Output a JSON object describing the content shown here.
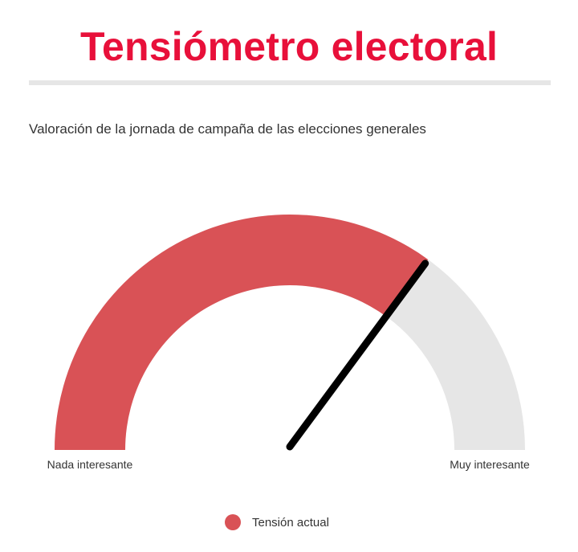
{
  "header": {
    "title": "Tensiómetro electoral"
  },
  "chart_data": {
    "type": "gauge",
    "title": "Tensiómetro electoral",
    "subtitle": "Valoración de la jornada de campaña de las elecciones generales",
    "min_label": "Nada interesante",
    "max_label": "Muy interesante",
    "range": [
      0,
      100
    ],
    "value": 70,
    "series": [
      {
        "name": "Tensión actual",
        "value": 70,
        "color": "#d95256"
      }
    ],
    "track_color": "#e6e6e6",
    "needle_color": "#000000",
    "legend": {
      "position": "bottom-center"
    }
  }
}
